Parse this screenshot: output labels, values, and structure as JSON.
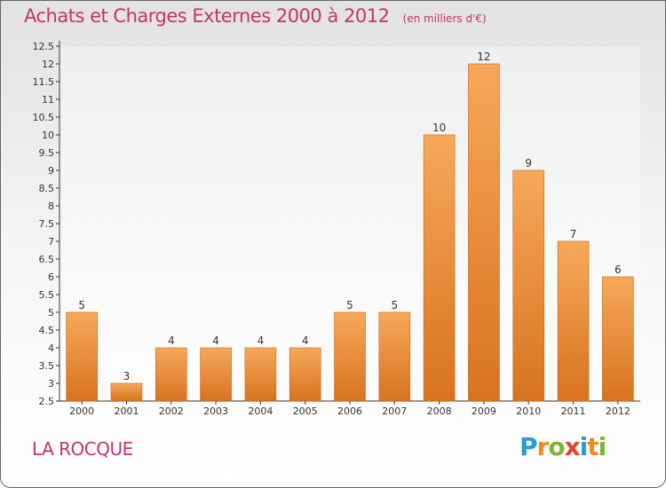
{
  "header": {
    "title": "Achats et Charges Externes 2000 à 2012",
    "subtitle": "(en milliers d'€)"
  },
  "footer": {
    "commune": "LA ROCQUE",
    "logo_text": "Proxiti"
  },
  "colors": {
    "title": "#c5336d",
    "bar_top": "#f6a85a",
    "bar_bottom": "#d8731f",
    "axis": "#333333",
    "grid": "#d8d8d8"
  },
  "chart_data": {
    "type": "bar",
    "categories": [
      "2000",
      "2001",
      "2002",
      "2003",
      "2004",
      "2005",
      "2006",
      "2007",
      "2008",
      "2009",
      "2010",
      "2011",
      "2012"
    ],
    "values": [
      5,
      3,
      4,
      4,
      4,
      4,
      5,
      5,
      10,
      12,
      9,
      7,
      6
    ],
    "data_labels": [
      "5",
      "3",
      "4",
      "4",
      "4",
      "4",
      "5",
      "5",
      "10",
      "12",
      "9",
      "7",
      "6"
    ],
    "title": "Achats et Charges Externes 2000 à 2012",
    "xlabel": "",
    "ylabel": "",
    "ylim": [
      2.5,
      12.5
    ],
    "y_ticks": [
      "2.5",
      "3",
      "3.5",
      "4",
      "4.5",
      "5",
      "5.5",
      "6",
      "6.5",
      "7",
      "7.5",
      "8",
      "8.5",
      "9",
      "9.5",
      "10",
      "10.5",
      "11",
      "11.5",
      "12",
      "12.5"
    ],
    "grid": true,
    "legend": "none"
  }
}
